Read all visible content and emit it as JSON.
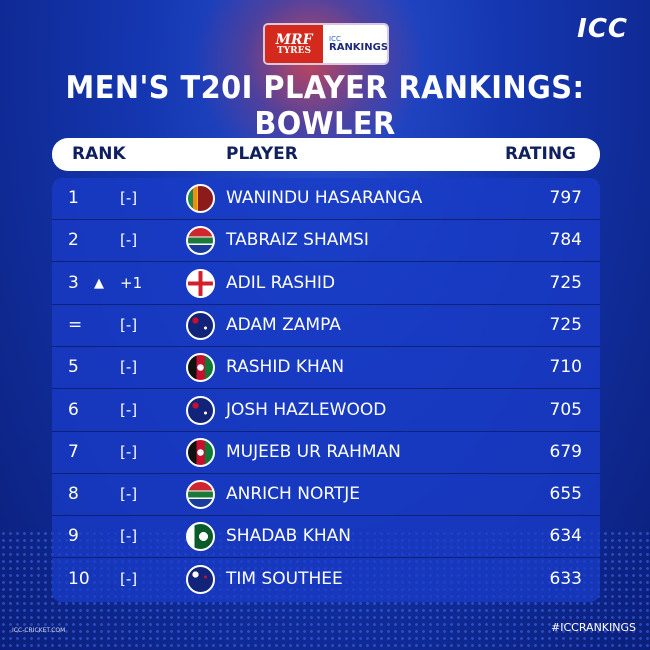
{
  "sponsor": {
    "mrf_line1": "MRF",
    "mrf_line2": "TYRES",
    "icc_small": "ICC",
    "rankings": "RANKINGS"
  },
  "brand": "ICC",
  "title": "MEN'S T20I PLAYER RANKINGS: BOWLER",
  "columns": {
    "rank": "RANK",
    "player": "PLAYER",
    "rating": "RATING"
  },
  "rows": [
    {
      "rank": "1",
      "arrow": "",
      "change": "[-]",
      "flag": "sri-lanka",
      "name": "WANINDU HASARANGA",
      "rating": "797"
    },
    {
      "rank": "2",
      "arrow": "",
      "change": "[-]",
      "flag": "south-africa",
      "name": "TABRAIZ SHAMSI",
      "rating": "784"
    },
    {
      "rank": "3",
      "arrow": "▲",
      "change": "+1",
      "flag": "england",
      "name": "ADIL RASHID",
      "rating": "725"
    },
    {
      "rank": "=",
      "arrow": "",
      "change": "[-]",
      "flag": "australia",
      "name": "ADAM ZAMPA",
      "rating": "725"
    },
    {
      "rank": "5",
      "arrow": "",
      "change": "[-]",
      "flag": "afghanistan",
      "name": "RASHID KHAN",
      "rating": "710"
    },
    {
      "rank": "6",
      "arrow": "",
      "change": "[-]",
      "flag": "australia",
      "name": "JOSH HAZLEWOOD",
      "rating": "705"
    },
    {
      "rank": "7",
      "arrow": "",
      "change": "[-]",
      "flag": "afghanistan",
      "name": "MUJEEB UR RAHMAN",
      "rating": "679"
    },
    {
      "rank": "8",
      "arrow": "",
      "change": "[-]",
      "flag": "south-africa",
      "name": "ANRICH NORTJE",
      "rating": "655"
    },
    {
      "rank": "9",
      "arrow": "",
      "change": "[-]",
      "flag": "pakistan",
      "name": "SHADAB KHAN",
      "rating": "634"
    },
    {
      "rank": "10",
      "arrow": "",
      "change": "[-]",
      "flag": "new-zealand",
      "name": "TIM SOUTHEE",
      "rating": "633"
    }
  ],
  "footer": {
    "site": "ICC-CRICKET.COM",
    "hashtag": "#ICCRANKINGS"
  },
  "colors": {
    "background": "#1436b0",
    "panel": "#1f45c8",
    "header_text": "#10205e"
  }
}
